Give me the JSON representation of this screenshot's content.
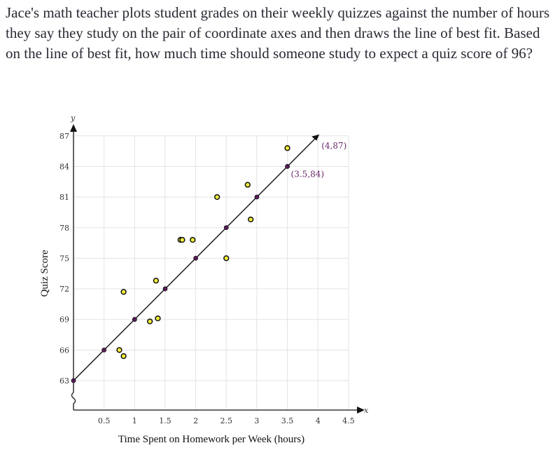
{
  "question": "Jace's math teacher plots student grades on their weekly quizzes against the number of hours they say they study on the pair of coordinate axes and then draws the line of best fit. Based on the line of best fit, how much time should someone study to expect a quiz score of 96?",
  "chart_data": {
    "type": "scatter",
    "xlabel": "Time Spent on Homework per Week (hours)",
    "ylabel": "Quiz Score",
    "x_axis_letter": "x",
    "y_axis_letter": "y",
    "xlim": [
      0,
      4.5
    ],
    "ylim": [
      63,
      87
    ],
    "x_ticks": [
      "0.5",
      "1",
      "1.5",
      "2",
      "2.5",
      "3",
      "3.5",
      "4",
      "4.5"
    ],
    "y_ticks": [
      "63",
      "66",
      "69",
      "72",
      "75",
      "78",
      "81",
      "84",
      "87"
    ],
    "grid": true,
    "axis_break": "y",
    "scatter_points": [
      {
        "x": 0.75,
        "y": 66
      },
      {
        "x": 0.82,
        "y": 65.4
      },
      {
        "x": 0.82,
        "y": 71.7
      },
      {
        "x": 1.25,
        "y": 68.8
      },
      {
        "x": 1.38,
        "y": 69.1
      },
      {
        "x": 1.35,
        "y": 72.8
      },
      {
        "x": 1.75,
        "y": 76.8
      },
      {
        "x": 1.78,
        "y": 76.8
      },
      {
        "x": 1.95,
        "y": 76.8
      },
      {
        "x": 2.35,
        "y": 81
      },
      {
        "x": 2.5,
        "y": 75
      },
      {
        "x": 2.85,
        "y": 82.2
      },
      {
        "x": 2.9,
        "y": 78.8
      },
      {
        "x": 3.5,
        "y": 85.8
      }
    ],
    "fit_line": {
      "x": [
        0,
        4
      ],
      "y": [
        63,
        87
      ],
      "marked_points": [
        {
          "x": 0,
          "y": 63
        },
        {
          "x": 0.5,
          "y": 66
        },
        {
          "x": 1,
          "y": 69
        },
        {
          "x": 1.5,
          "y": 72
        },
        {
          "x": 2,
          "y": 75
        },
        {
          "x": 2.5,
          "y": 78
        },
        {
          "x": 3,
          "y": 81
        },
        {
          "x": 3.5,
          "y": 84
        }
      ]
    },
    "annotations": [
      {
        "text": "(4,87)",
        "x": 4,
        "y": 87
      },
      {
        "text": "(3.5,84)",
        "x": 3.5,
        "y": 84
      }
    ]
  }
}
